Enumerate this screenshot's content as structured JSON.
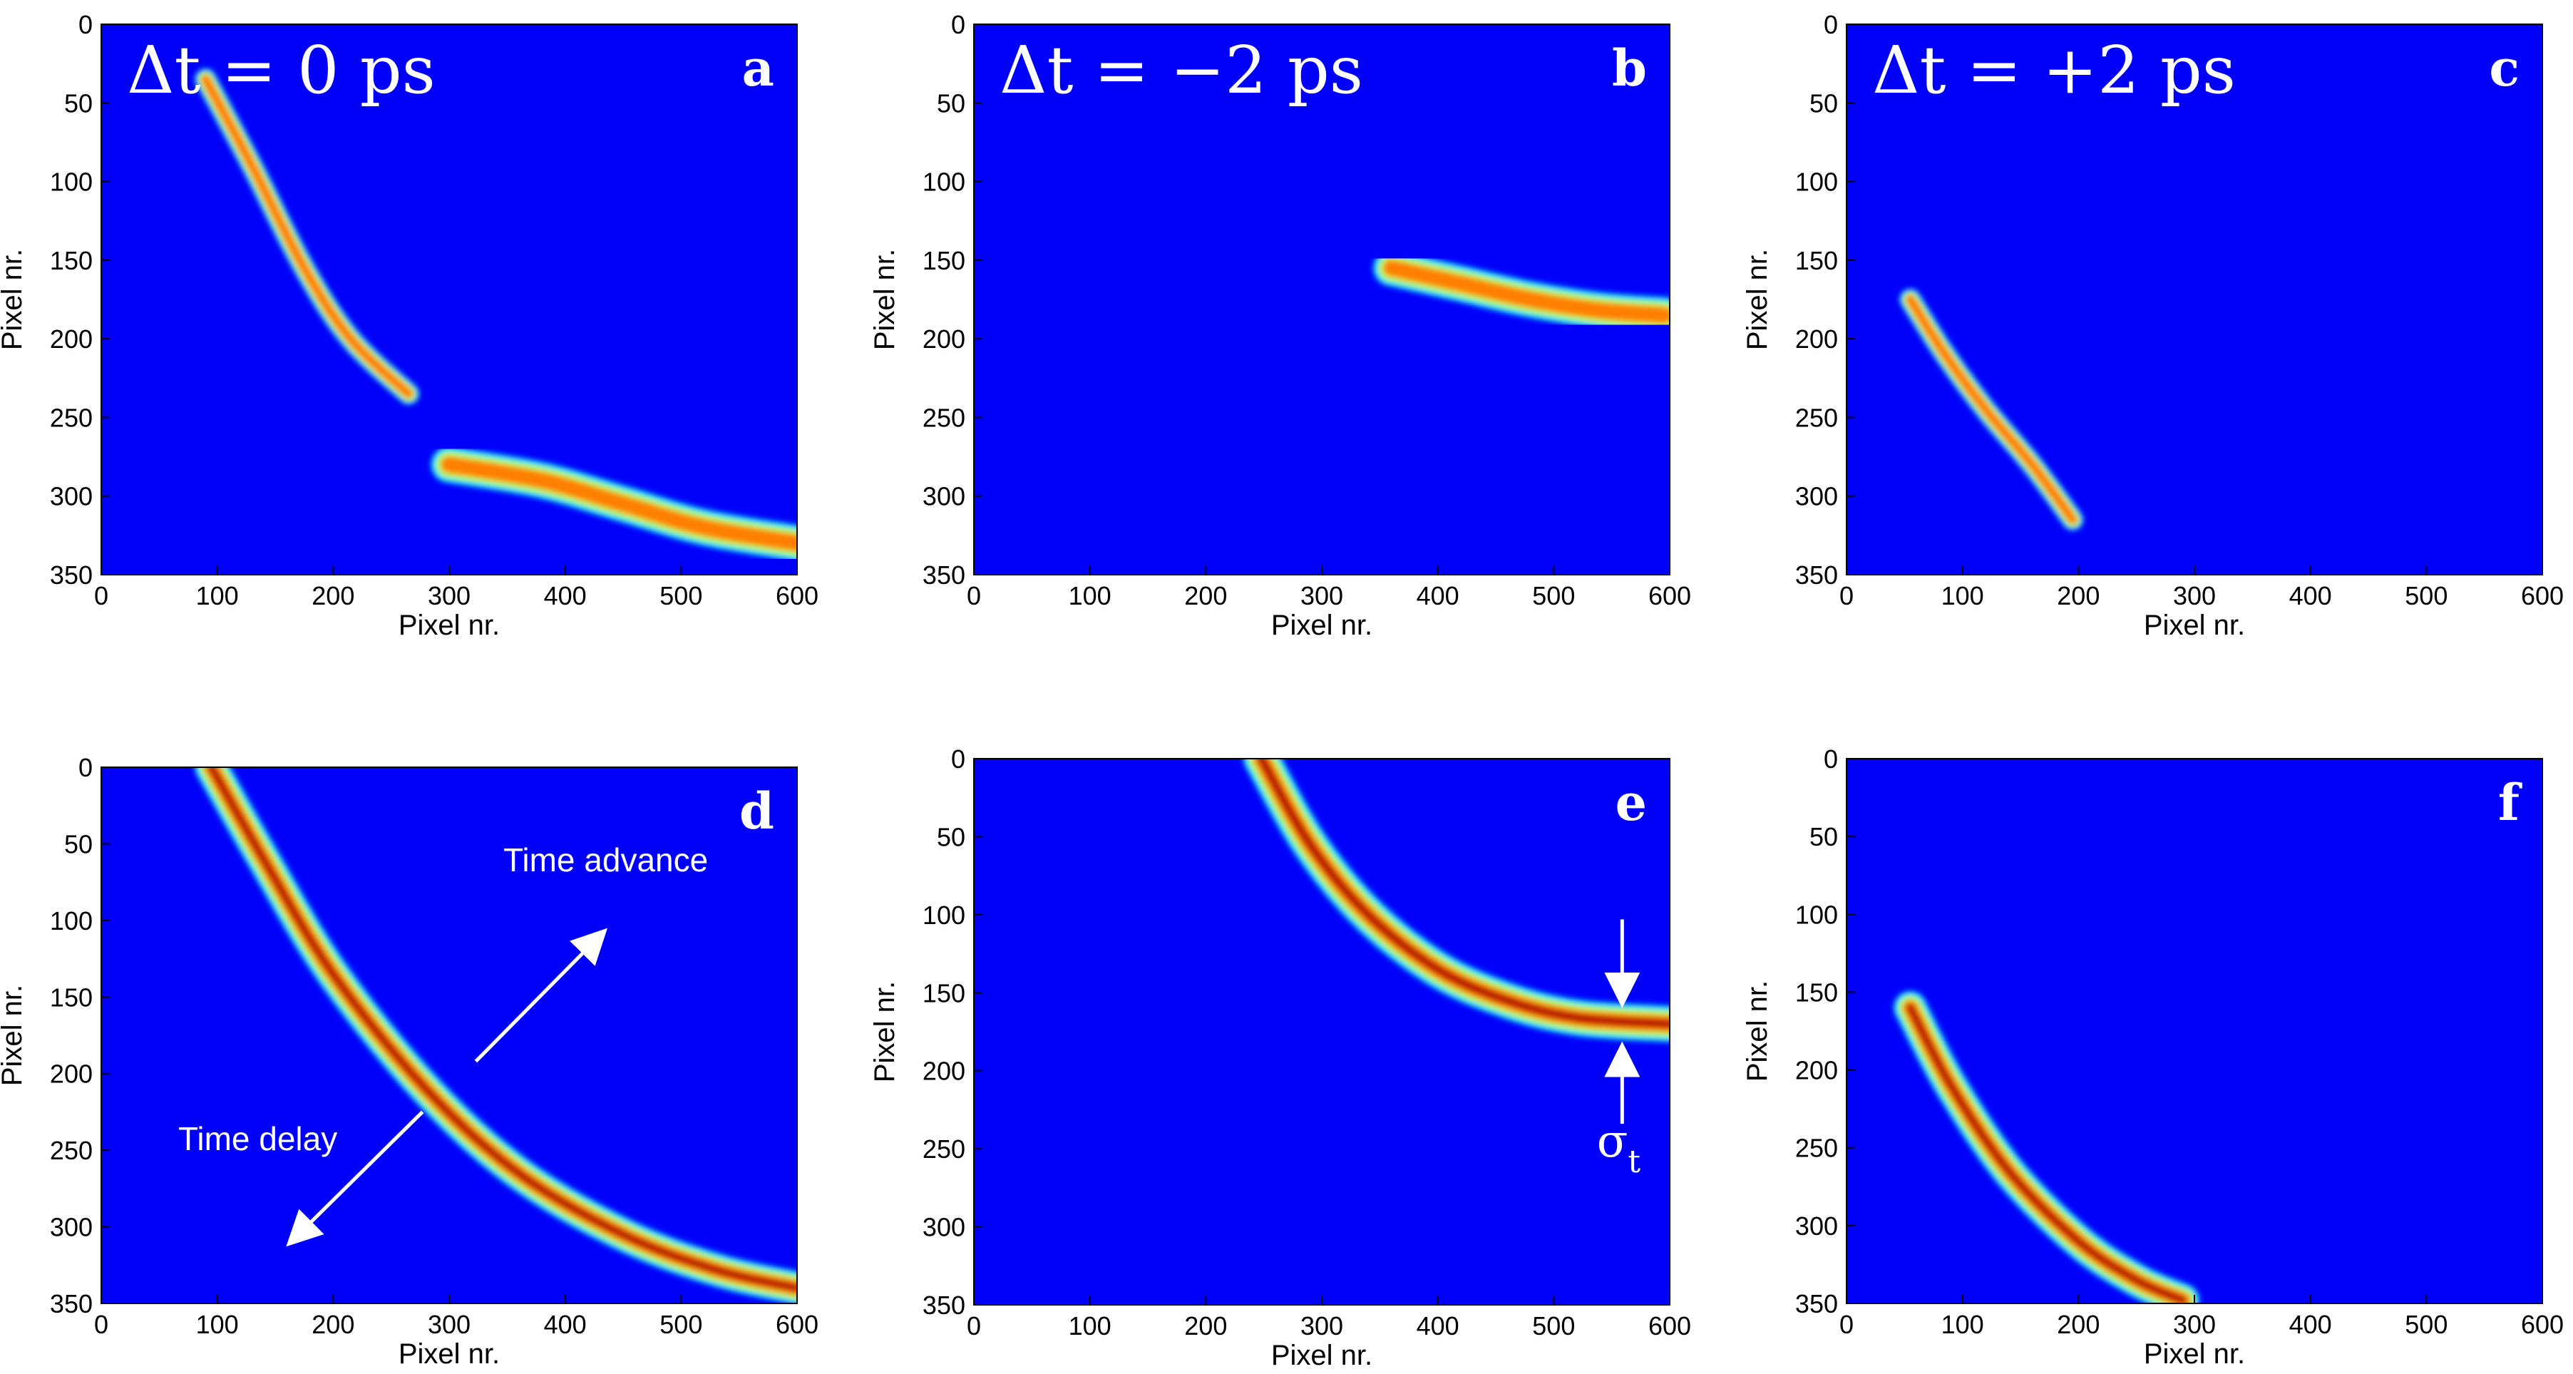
{
  "chart_data": [
    {
      "id": "a",
      "type": "heatmap",
      "panel_letter": "a",
      "title_prefix": "Δt = ",
      "title_value": "0 ps",
      "xlabel": "Pixel nr.",
      "ylabel": "Pixel nr.",
      "xlim": [
        0,
        600
      ],
      "ylim": [
        350,
        0
      ],
      "xticks": [
        0,
        100,
        200,
        300,
        400,
        500,
        600
      ],
      "yticks": [
        0,
        50,
        100,
        150,
        200,
        250,
        300,
        350
      ],
      "colormap": "jet",
      "bands": [
        {
          "points": [
            [
              90,
              35
            ],
            [
              130,
              90
            ],
            [
              175,
              155
            ],
            [
              215,
              200
            ],
            [
              265,
              235
            ]
          ],
          "half_width": 7,
          "peak": 0.78
        },
        {
          "points": [
            [
              300,
              280
            ],
            [
              380,
              290
            ],
            [
              450,
              305
            ],
            [
              520,
              320
            ],
            [
              600,
              330
            ]
          ],
          "half_width": 12,
          "peak": 0.9
        }
      ]
    },
    {
      "id": "b",
      "type": "heatmap",
      "panel_letter": "b",
      "title_prefix": "Δt = ",
      "title_value": "−2 ps",
      "xlabel": "Pixel nr.",
      "ylabel": "Pixel nr.",
      "xlim": [
        0,
        600
      ],
      "ylim": [
        350,
        0
      ],
      "xticks": [
        0,
        100,
        200,
        300,
        400,
        500,
        600
      ],
      "yticks": [
        0,
        50,
        100,
        150,
        200,
        250,
        300,
        350
      ],
      "colormap": "jet",
      "bands": [
        {
          "points": [
            [
              360,
              155
            ],
            [
              420,
              165
            ],
            [
              480,
              175
            ],
            [
              540,
              182
            ],
            [
              595,
              185
            ]
          ],
          "half_width": 12,
          "peak": 0.85
        }
      ]
    },
    {
      "id": "c",
      "type": "heatmap",
      "panel_letter": "c",
      "title_prefix": "Δt = ",
      "title_value": "+2 ps",
      "xlabel": "Pixel nr.",
      "ylabel": "Pixel nr.",
      "xlim": [
        0,
        600
      ],
      "ylim": [
        350,
        0
      ],
      "xticks": [
        0,
        100,
        200,
        300,
        400,
        500,
        600
      ],
      "yticks": [
        0,
        50,
        100,
        150,
        200,
        250,
        300,
        350
      ],
      "colormap": "jet",
      "bands": [
        {
          "points": [
            [
              55,
              175
            ],
            [
              85,
              210
            ],
            [
              120,
              245
            ],
            [
              160,
              280
            ],
            [
              195,
              315
            ]
          ],
          "half_width": 7,
          "peak": 0.85
        }
      ]
    },
    {
      "id": "d",
      "type": "heatmap",
      "panel_letter": "d",
      "xlabel": "Pixel nr.",
      "ylabel": "Pixel nr.",
      "xlim": [
        0,
        600
      ],
      "ylim": [
        350,
        0
      ],
      "xticks": [
        0,
        100,
        200,
        300,
        400,
        500,
        600
      ],
      "yticks": [
        0,
        50,
        100,
        150,
        200,
        250,
        300,
        350
      ],
      "colormap": "jet",
      "bands": [
        {
          "points": [
            [
              95,
              0
            ],
            [
              140,
              60
            ],
            [
              200,
              135
            ],
            [
              280,
              210
            ],
            [
              360,
              265
            ],
            [
              450,
              305
            ],
            [
              530,
              328
            ],
            [
              600,
              340
            ]
          ],
          "half_width": 11,
          "peak": 1.0
        }
      ],
      "annotations": [
        {
          "text": "Time advance",
          "x": 435,
          "y": 68
        },
        {
          "text": "Time delay",
          "x": 135,
          "y": 250
        }
      ],
      "arrows": [
        {
          "from": [
            323,
            192
          ],
          "to": [
            430,
            110
          ]
        },
        {
          "from": [
            277,
            225
          ],
          "to": [
            166,
            308
          ]
        }
      ]
    },
    {
      "id": "e",
      "type": "heatmap",
      "panel_letter": "e",
      "xlabel": "Pixel nr.",
      "ylabel": "Pixel nr.",
      "xlim": [
        0,
        600
      ],
      "ylim": [
        350,
        0
      ],
      "xticks": [
        0,
        100,
        200,
        300,
        400,
        500,
        600
      ],
      "yticks": [
        0,
        50,
        100,
        150,
        200,
        250,
        300,
        350
      ],
      "colormap": "jet",
      "bands": [
        {
          "points": [
            [
              248,
              0
            ],
            [
              290,
              55
            ],
            [
              340,
              100
            ],
            [
              400,
              135
            ],
            [
              460,
              155
            ],
            [
              520,
              166
            ],
            [
              600,
              170
            ]
          ],
          "half_width": 12,
          "peak": 1.0
        }
      ],
      "annotations": [
        {
          "text": "σ",
          "subscript": "t",
          "x": 556,
          "y": 255
        }
      ],
      "arrows": [
        {
          "from": [
            559,
            103
          ],
          "to": [
            559,
            153
          ]
        },
        {
          "from": [
            559,
            234
          ],
          "to": [
            559,
            188
          ]
        }
      ]
    },
    {
      "id": "f",
      "type": "heatmap",
      "panel_letter": "f",
      "xlabel": "Pixel nr.",
      "ylabel": "Pixel nr.",
      "xlim": [
        0,
        600
      ],
      "ylim": [
        350,
        0
      ],
      "xticks": [
        0,
        100,
        200,
        300,
        400,
        500,
        600
      ],
      "yticks": [
        0,
        50,
        100,
        150,
        200,
        250,
        300,
        350
      ],
      "colormap": "jet",
      "bands": [
        {
          "points": [
            [
              55,
              160
            ],
            [
              90,
              210
            ],
            [
              140,
              265
            ],
            [
              200,
              310
            ],
            [
              250,
              335
            ],
            [
              290,
              348
            ]
          ],
          "half_width": 11,
          "peak": 1.0
        }
      ]
    }
  ]
}
